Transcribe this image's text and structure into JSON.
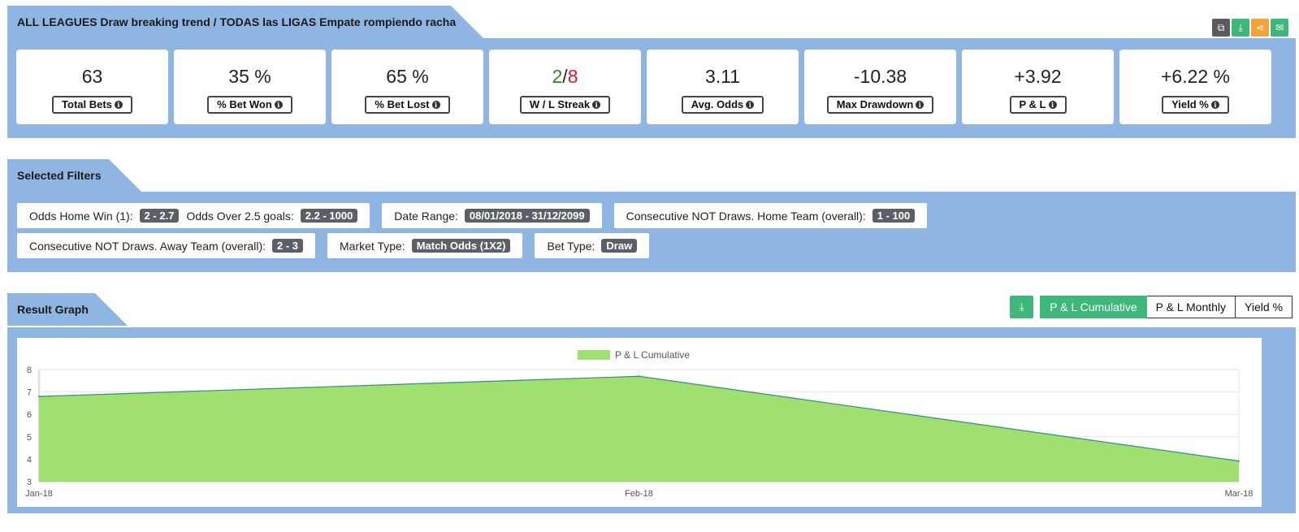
{
  "header": {
    "title": "ALL LEAGUES Draw breaking trend / TODAS las LIGAS Empate rompiendo racha",
    "icons": [
      {
        "name": "copy-icon",
        "glyph": "⧉",
        "color": "#5b5b5b"
      },
      {
        "name": "download-icon",
        "glyph": "⤓",
        "color": "#3fb77a"
      },
      {
        "name": "share-icon",
        "glyph": "⋖",
        "color": "#f0a33a"
      },
      {
        "name": "email-icon",
        "glyph": "✉",
        "color": "#3fb77a"
      }
    ]
  },
  "stats": [
    {
      "value": "63",
      "label": "Total Bets",
      "color": "default"
    },
    {
      "value": "35 %",
      "label": "% Bet Won",
      "color": "default"
    },
    {
      "value": "65 %",
      "label": "% Bet Lost",
      "color": "default"
    },
    {
      "value_win": "2",
      "value_sep": "/",
      "value_loss": "8",
      "label": "W / L Streak",
      "color": "split"
    },
    {
      "value": "3.11",
      "label": "Avg. Odds",
      "color": "default"
    },
    {
      "value": "-10.38",
      "label": "Max Drawdown",
      "color": "red"
    },
    {
      "value": "+3.92",
      "label": "P & L",
      "color": "green"
    },
    {
      "value": "+6.22 %",
      "label": "Yield %",
      "color": "green"
    }
  ],
  "filters_section": {
    "title": "Selected Filters",
    "row1": [
      {
        "parts": [
          {
            "label": "Odds Home Win (1):",
            "value": "2 - 2.7"
          },
          {
            "label": "Odds Over 2.5 goals:",
            "value": "2.2 - 1000"
          }
        ]
      },
      {
        "parts": [
          {
            "label": "Date Range:",
            "value": "08/01/2018 - 31/12/2099"
          }
        ]
      },
      {
        "parts": [
          {
            "label": "Consecutive NOT Draws. Home Team (overall):",
            "value": "1 - 100"
          }
        ]
      }
    ],
    "row2": [
      {
        "parts": [
          {
            "label": "Consecutive NOT Draws. Away Team (overall):",
            "value": "2 - 3"
          }
        ]
      },
      {
        "parts": [
          {
            "label": "Market Type:",
            "value": "Match Odds (1X2)"
          }
        ]
      },
      {
        "parts": [
          {
            "label": "Bet Type:",
            "value": "Draw"
          }
        ]
      }
    ]
  },
  "graph_section": {
    "title": "Result Graph",
    "download_icon": "download-icon",
    "tabs": [
      {
        "label": "P & L Cumulative",
        "active": true
      },
      {
        "label": "P & L Monthly",
        "active": false
      },
      {
        "label": "Yield %",
        "active": false
      }
    ]
  },
  "chart_data": {
    "type": "area",
    "x": [
      "Jan-18",
      "Feb-18",
      "Mar-18"
    ],
    "series": [
      {
        "name": "P & L Cumulative",
        "values": [
          6.8,
          7.7,
          3.92
        ],
        "fill": "#a0e071",
        "line": "#3a8a8a"
      }
    ],
    "ylim": [
      3,
      8
    ],
    "yticks": [
      3,
      4,
      5,
      6,
      7,
      8
    ],
    "legend": "top-center",
    "grid": true
  }
}
